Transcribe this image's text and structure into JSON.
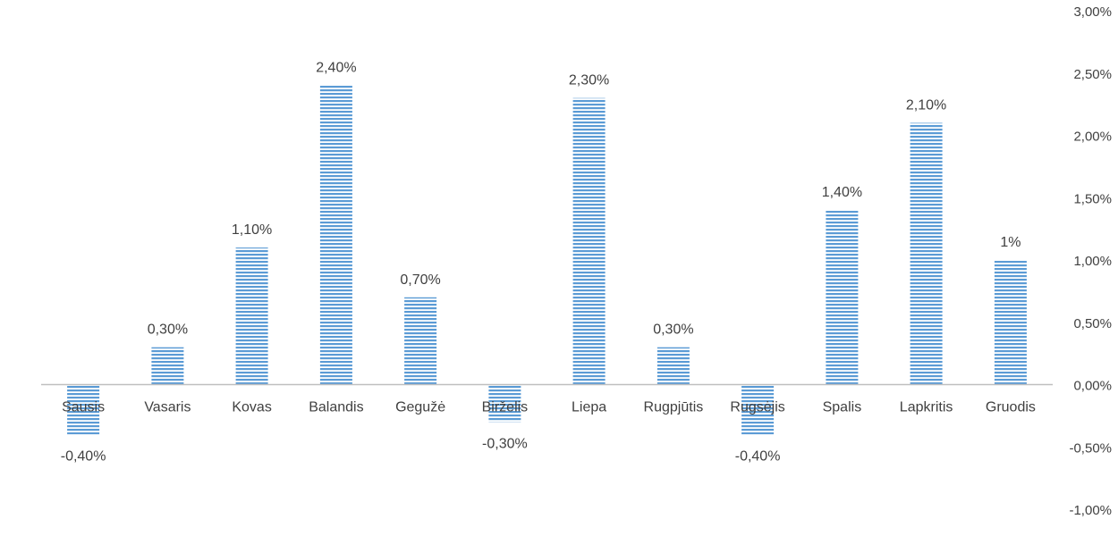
{
  "chart_data": {
    "type": "bar",
    "categories": [
      "Sausis",
      "Vasaris",
      "Kovas",
      "Balandis",
      "Gegužė",
      "Birželis",
      "Liepa",
      "Rugpjūtis",
      "Rugsėjis",
      "Spalis",
      "Lapkritis",
      "Gruodis"
    ],
    "values": [
      -0.4,
      0.3,
      1.1,
      2.4,
      0.7,
      -0.3,
      2.3,
      0.3,
      -0.4,
      1.4,
      2.1,
      1.0
    ],
    "data_labels": [
      "-0,40%",
      "0,30%",
      "1,10%",
      "2,40%",
      "0,70%",
      "-0,30%",
      "2,30%",
      "0,30%",
      "-0,40%",
      "1,40%",
      "2,10%",
      "1%"
    ],
    "y_ticks": [
      3.0,
      2.5,
      2.0,
      1.5,
      1.0,
      0.5,
      0.0,
      -0.5,
      -1.0
    ],
    "y_tick_labels": [
      "3,00%",
      "2,50%",
      "2,00%",
      "1,50%",
      "1,00%",
      "0,50%",
      "0,00%",
      "-0,50%",
      "-1,00%"
    ],
    "ylim": [
      -1.0,
      3.0
    ],
    "y_axis_position": "right",
    "grid": false,
    "legend": "none",
    "title": "",
    "xlabel": "",
    "ylabel": "",
    "colors": {
      "bar_stripe": "#5b9bd5",
      "bar_gap": "#ffffff",
      "axis": "#bfbfbf",
      "text": "#404040"
    }
  }
}
